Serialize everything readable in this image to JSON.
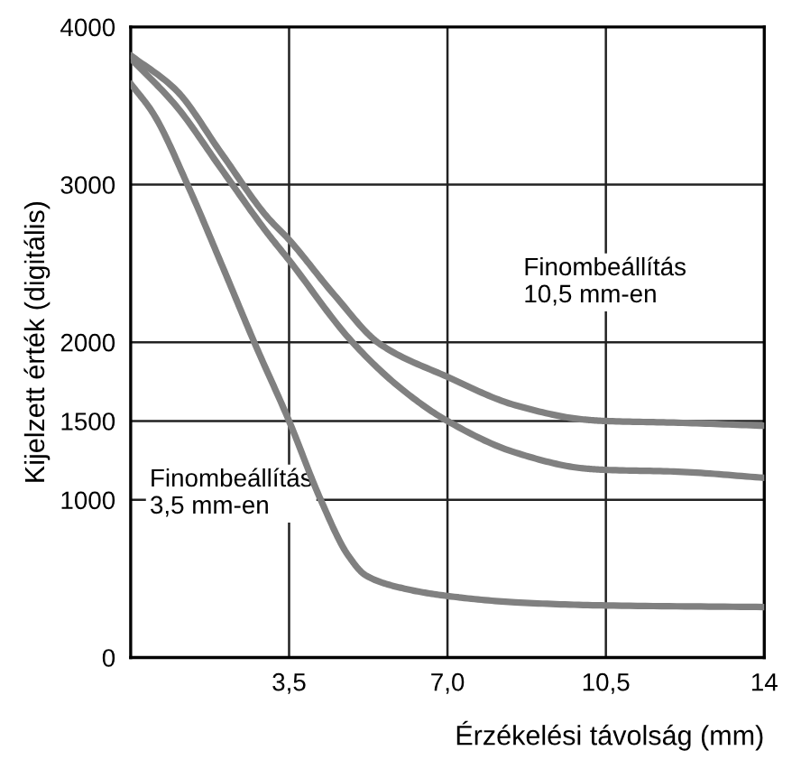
{
  "chart_data": {
    "type": "line",
    "xlabel": "Érzékelési távolság (mm)",
    "ylabel": "Kijelzett érték (digitális)",
    "xlim": [
      0,
      14
    ],
    "ylim": [
      0,
      4000
    ],
    "xticks": [
      {
        "value": 3.5,
        "label": "3,5"
      },
      {
        "value": 7,
        "label": "7,0"
      },
      {
        "value": 10.5,
        "label": "10,5"
      },
      14
    ],
    "yticks": [
      0,
      1000,
      1500,
      2000,
      3000,
      4000
    ],
    "grid": true,
    "line_style": "solid",
    "marker": "none",
    "annotations": [
      "Finombeállítás\n10,5 mm-en",
      "Finombeállítás\n3,5 mm-en"
    ],
    "series": [
      {
        "color": "#808080",
        "x": [
          0,
          1,
          2,
          3,
          3.5,
          4.5,
          5.5,
          7,
          8.5,
          10,
          10.5,
          12,
          14
        ],
        "values": [
          3820,
          3600,
          3200,
          2800,
          2650,
          2300,
          1990,
          1780,
          1600,
          1510,
          1500,
          1490,
          1470
        ]
      },
      {
        "color": "#808080",
        "x": [
          0,
          1,
          2,
          3,
          3.5,
          4.9,
          6,
          7,
          8.5,
          10,
          10.5,
          12,
          14
        ],
        "values": [
          3800,
          3500,
          3100,
          2700,
          2520,
          2000,
          1700,
          1500,
          1300,
          1200,
          1190,
          1180,
          1140
        ]
      },
      {
        "color": "#808080",
        "x": [
          0,
          0.5,
          1.27,
          2,
          2.73,
          3.5,
          4.2,
          4.8,
          5.2,
          6,
          7,
          8.5,
          10.5,
          14
        ],
        "values": [
          3640,
          3450,
          2990,
          2500,
          2000,
          1500,
          1000,
          650,
          520,
          440,
          390,
          350,
          330,
          320
        ]
      }
    ]
  }
}
